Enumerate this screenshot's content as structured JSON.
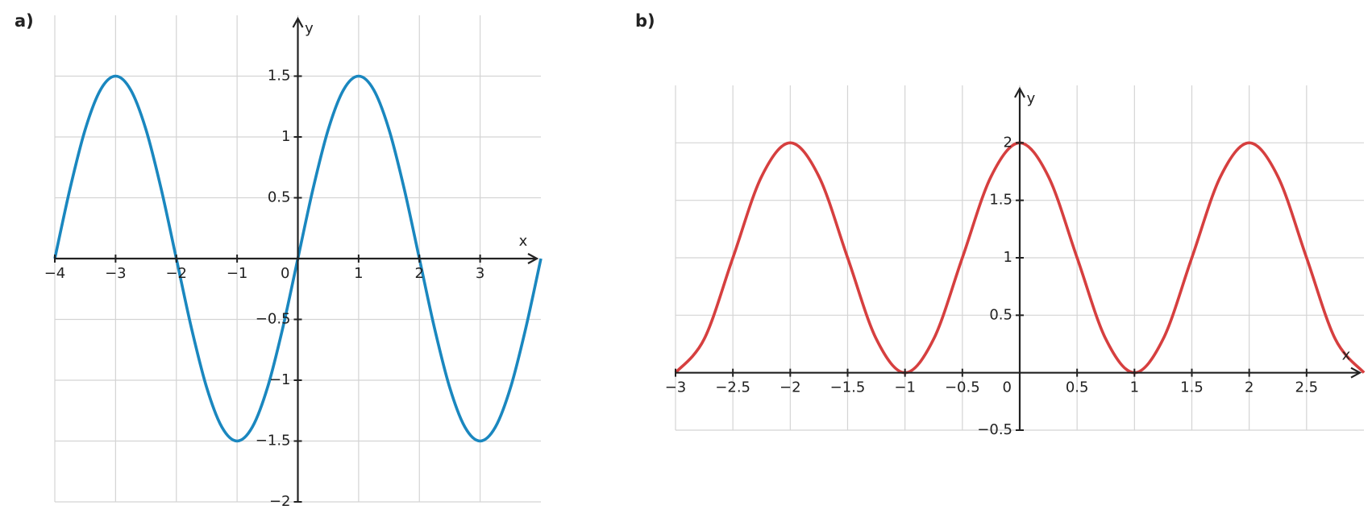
{
  "chart_data": [
    {
      "type": "line",
      "panel_label": "a)",
      "xlabel": "x",
      "ylabel": "y",
      "x": [
        -4,
        -3.75,
        -3.5,
        -3.25,
        -3,
        -2.75,
        -2.5,
        -2.25,
        -2,
        -1.75,
        -1.5,
        -1.25,
        -1,
        -0.75,
        -0.5,
        -0.25,
        0,
        0.25,
        0.5,
        0.75,
        1,
        1.25,
        1.5,
        1.75,
        2,
        2.25,
        2.5,
        2.75,
        3,
        3.25,
        3.5,
        3.75,
        4
      ],
      "series": [
        {
          "color": "#1a87bf",
          "values": [
            0,
            0.574,
            1.061,
            1.386,
            1.5,
            1.386,
            1.061,
            0.574,
            0,
            -0.574,
            -1.061,
            -1.386,
            -1.5,
            -1.386,
            -1.061,
            -0.574,
            0,
            0.574,
            1.061,
            1.386,
            1.5,
            1.386,
            1.061,
            0.574,
            0,
            -0.574,
            -1.061,
            -1.386,
            -1.5,
            -1.386,
            -1.061,
            -0.574,
            0
          ]
        }
      ],
      "xlim": [
        -4,
        4
      ],
      "ylim": [
        -2,
        2
      ],
      "xticks": [
        {
          "value": -4,
          "label": "−4"
        },
        {
          "value": -3,
          "label": "−3"
        },
        {
          "value": -2,
          "label": "−2"
        },
        {
          "value": -1,
          "label": "−1"
        },
        0,
        1,
        2,
        3
      ],
      "yticks": [
        {
          "value": -2,
          "label": "−2"
        },
        {
          "value": -1.5,
          "label": "−1.5"
        },
        {
          "value": -1,
          "label": "−1"
        },
        {
          "value": -0.5,
          "label": "−0.5"
        },
        0.5,
        1,
        1.5
      ],
      "grid": true
    },
    {
      "type": "line",
      "panel_label": "b)",
      "xlabel": "x",
      "ylabel": "y",
      "x": [
        -3,
        -2.75,
        -2.5,
        -2.25,
        -2,
        -1.75,
        -1.5,
        -1.25,
        -1,
        -0.75,
        -0.5,
        -0.25,
        0,
        0.25,
        0.5,
        0.75,
        1,
        1.25,
        1.5,
        1.75,
        2,
        2.25,
        2.5,
        2.75,
        3
      ],
      "series": [
        {
          "color": "#d63f3f",
          "values": [
            0,
            0.293,
            1,
            1.707,
            2,
            1.707,
            1,
            0.293,
            0,
            0.293,
            1,
            1.707,
            2,
            1.707,
            1,
            0.293,
            0,
            0.293,
            1,
            1.707,
            2,
            1.707,
            1,
            0.293,
            0
          ]
        }
      ],
      "xlim": [
        -3,
        3
      ],
      "ylim": [
        -0.5,
        2.5
      ],
      "xticks": [
        {
          "value": -3,
          "label": "−3"
        },
        {
          "value": -2.5,
          "label": "−2.5"
        },
        {
          "value": -2,
          "label": "−2"
        },
        {
          "value": -1.5,
          "label": "−1.5"
        },
        {
          "value": -1,
          "label": "−1"
        },
        {
          "value": -0.5,
          "label": "−0.5"
        },
        0,
        0.5,
        1,
        1.5,
        2,
        2.5
      ],
      "yticks": [
        {
          "value": -0.5,
          "label": "−0.5"
        },
        0.5,
        1,
        1.5,
        2
      ],
      "grid": true
    }
  ]
}
